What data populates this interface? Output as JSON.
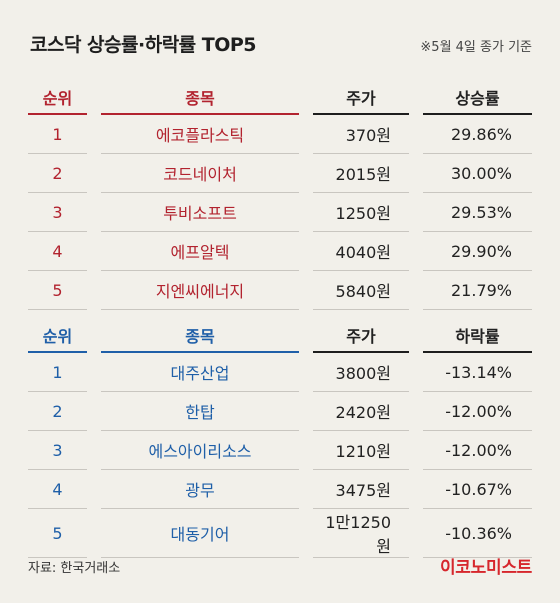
{
  "title": "코스닥 상승률·하락률 TOP5",
  "note": "※5월 4일 종가 기준",
  "colors": {
    "gainer_accent": "#b2232f",
    "loser_accent": "#1f5fa8",
    "brand": "#d6262c"
  },
  "gainers": {
    "headers": {
      "rank": "순위",
      "name": "종목",
      "price": "주가",
      "rate": "상승률"
    },
    "rows": [
      {
        "rank": "1",
        "name": "에코플라스틱",
        "price": "370원",
        "rate": "29.86%"
      },
      {
        "rank": "2",
        "name": "코드네이처",
        "price": "2015원",
        "rate": "30.00%"
      },
      {
        "rank": "3",
        "name": "투비소프트",
        "price": "1250원",
        "rate": "29.53%"
      },
      {
        "rank": "4",
        "name": "에프알텍",
        "price": "4040원",
        "rate": "29.90%"
      },
      {
        "rank": "5",
        "name": "지엔씨에너지",
        "price": "5840원",
        "rate": "21.79%"
      }
    ]
  },
  "losers": {
    "headers": {
      "rank": "순위",
      "name": "종목",
      "price": "주가",
      "rate": "하락률"
    },
    "rows": [
      {
        "rank": "1",
        "name": "대주산업",
        "price": "3800원",
        "rate": "-13.14%"
      },
      {
        "rank": "2",
        "name": "한탑",
        "price": "2420원",
        "rate": "-12.00%"
      },
      {
        "rank": "3",
        "name": "에스아이리소스",
        "price": "1210원",
        "rate": "-12.00%"
      },
      {
        "rank": "4",
        "name": "광무",
        "price": "3475원",
        "rate": "-10.67%"
      },
      {
        "rank": "5",
        "name": "대동기어",
        "price": "1만1250원",
        "rate": "-10.36%"
      }
    ]
  },
  "source": "자료: 한국거래소",
  "brand": "이코노미스트"
}
